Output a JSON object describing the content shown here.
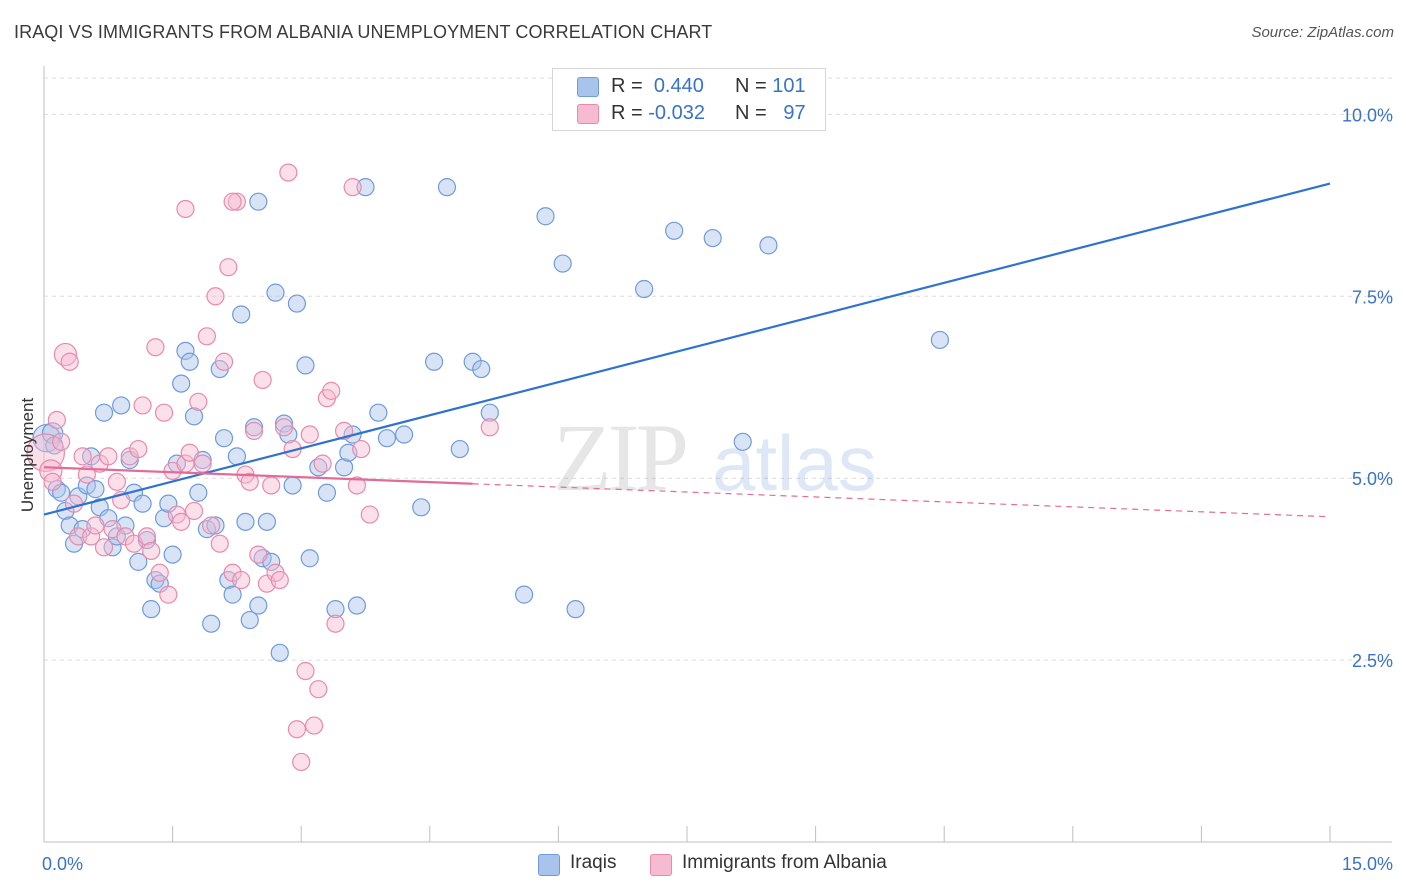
{
  "title": "IRAQI VS IMMIGRANTS FROM ALBANIA UNEMPLOYMENT CORRELATION CHART",
  "source": "Source: ZipAtlas.com",
  "watermark": {
    "zip": "ZIP",
    "atlas": "atlas"
  },
  "legend": {
    "r_label": "R =",
    "n_label": "N =",
    "rows": [
      {
        "r": "0.440",
        "n": "101",
        "color": "#a9c4ec",
        "border": "#6f9bdb"
      },
      {
        "r": "-0.032",
        "n": "97",
        "color": "#f6bbd0",
        "border": "#e88aab"
      }
    ]
  },
  "colors": {
    "iraqis_fill": "#a9c4ec",
    "iraqis_stroke": "#6f9bdb",
    "iraqis_line": "#2f73cf",
    "albania_fill": "#f6bbd0",
    "albania_stroke": "#e88aab",
    "albania_line": "#e36b97",
    "tick_label": "#3a72c8",
    "grid": "#dcdcdc"
  },
  "chart_data": {
    "type": "scatter",
    "title": "IRAQI VS IMMIGRANTS FROM ALBANIA UNEMPLOYMENT CORRELATION CHART",
    "xlabel": "",
    "ylabel": "Unemployment",
    "xlim": [
      0,
      15
    ],
    "ylim": [
      0,
      10.5
    ],
    "x_tick_labels": [
      "0.0%",
      "15.0%"
    ],
    "y_ticks": [
      2.5,
      5.0,
      7.5,
      10.0
    ],
    "y_tick_labels": [
      "2.5%",
      "5.0%",
      "7.5%",
      "10.0%"
    ],
    "grid": true,
    "legend_position": "top-center",
    "series": [
      {
        "name": "Iraqis",
        "r": 0.44,
        "n": 101,
        "trend": {
          "x": [
            0,
            15
          ],
          "y": [
            4.5,
            9.05
          ],
          "dashed_from": null
        },
        "points": [
          [
            0.03,
            5.55,
            1.6
          ],
          [
            0.1,
            5.62,
            1.2
          ],
          [
            0.12,
            5.45,
            1
          ],
          [
            0.15,
            4.85,
            1
          ],
          [
            0.2,
            4.8,
            1
          ],
          [
            0.25,
            4.55,
            1
          ],
          [
            0.3,
            4.35,
            1
          ],
          [
            0.35,
            4.1,
            1
          ],
          [
            0.4,
            4.75,
            1
          ],
          [
            0.45,
            4.3,
            1
          ],
          [
            0.5,
            4.9,
            1
          ],
          [
            0.55,
            5.3,
            1
          ],
          [
            0.6,
            4.85,
            1
          ],
          [
            0.65,
            4.6,
            1
          ],
          [
            0.7,
            5.9,
            1
          ],
          [
            0.75,
            4.45,
            1
          ],
          [
            0.8,
            4.05,
            1
          ],
          [
            0.85,
            4.2,
            1
          ],
          [
            0.9,
            6.0,
            1
          ],
          [
            0.95,
            4.35,
            1
          ],
          [
            1.0,
            5.25,
            1
          ],
          [
            1.05,
            4.8,
            1
          ],
          [
            1.1,
            3.85,
            1
          ],
          [
            1.15,
            4.65,
            1
          ],
          [
            1.2,
            4.15,
            1
          ],
          [
            1.25,
            3.2,
            1
          ],
          [
            1.3,
            3.6,
            1
          ],
          [
            1.35,
            3.55,
            1
          ],
          [
            1.4,
            4.45,
            1
          ],
          [
            1.45,
            4.65,
            1
          ],
          [
            1.5,
            3.95,
            1
          ],
          [
            1.55,
            5.2,
            1
          ],
          [
            1.6,
            6.3,
            1
          ],
          [
            1.65,
            6.75,
            1
          ],
          [
            1.7,
            6.6,
            1
          ],
          [
            1.75,
            5.85,
            1
          ],
          [
            1.8,
            4.8,
            1
          ],
          [
            1.85,
            5.25,
            1
          ],
          [
            1.9,
            4.3,
            1
          ],
          [
            1.95,
            3.0,
            1
          ],
          [
            2.0,
            4.35,
            1
          ],
          [
            2.05,
            6.5,
            1
          ],
          [
            2.1,
            5.55,
            1
          ],
          [
            2.15,
            3.6,
            1
          ],
          [
            2.2,
            3.4,
            1
          ],
          [
            2.25,
            5.3,
            1
          ],
          [
            2.3,
            7.25,
            1
          ],
          [
            2.35,
            4.4,
            1
          ],
          [
            2.4,
            3.05,
            1
          ],
          [
            2.45,
            5.7,
            1
          ],
          [
            2.5,
            3.25,
            1
          ],
          [
            2.55,
            3.9,
            1
          ],
          [
            2.6,
            4.4,
            1
          ],
          [
            2.65,
            3.85,
            1
          ],
          [
            2.7,
            7.55,
            1
          ],
          [
            2.75,
            2.6,
            1
          ],
          [
            2.8,
            5.75,
            1
          ],
          [
            2.85,
            5.6,
            1
          ],
          [
            2.9,
            4.9,
            1
          ],
          [
            2.95,
            7.4,
            1
          ],
          [
            2.5,
            8.8,
            1
          ],
          [
            3.05,
            6.55,
            1
          ],
          [
            3.1,
            3.9,
            1
          ],
          [
            3.2,
            5.15,
            1
          ],
          [
            3.3,
            4.8,
            1
          ],
          [
            3.4,
            3.2,
            1
          ],
          [
            3.5,
            5.15,
            1
          ],
          [
            3.55,
            5.35,
            1
          ],
          [
            3.6,
            5.6,
            1
          ],
          [
            3.65,
            3.25,
            1
          ],
          [
            3.75,
            9.0,
            1
          ],
          [
            3.9,
            5.9,
            1
          ],
          [
            4.0,
            5.55,
            1
          ],
          [
            4.2,
            5.6,
            1
          ],
          [
            4.4,
            4.6,
            1
          ],
          [
            4.55,
            6.6,
            1
          ],
          [
            4.7,
            9.0,
            1
          ],
          [
            4.85,
            5.4,
            1
          ],
          [
            5.0,
            6.6,
            1
          ],
          [
            5.1,
            6.5,
            1
          ],
          [
            5.2,
            5.9,
            1
          ],
          [
            5.6,
            3.4,
            1
          ],
          [
            5.85,
            8.6,
            1
          ],
          [
            6.05,
            7.95,
            1
          ],
          [
            6.2,
            3.2,
            1
          ],
          [
            7.0,
            7.6,
            1
          ],
          [
            7.35,
            8.4,
            1
          ],
          [
            7.8,
            8.3,
            1
          ],
          [
            8.15,
            5.5,
            1
          ],
          [
            8.45,
            8.2,
            1
          ],
          [
            10.45,
            6.9,
            1
          ]
        ]
      },
      {
        "name": "Immigrants from Albania",
        "r": -0.032,
        "n": 97,
        "trend": {
          "x": [
            0,
            15
          ],
          "y": [
            5.15,
            4.47
          ],
          "dashed_from": 5.0
        },
        "points": [
          [
            0.02,
            5.35,
            2.2
          ],
          [
            0.08,
            5.1,
            1.3
          ],
          [
            0.1,
            4.95,
            1
          ],
          [
            0.15,
            5.8,
            1
          ],
          [
            0.2,
            5.5,
            1
          ],
          [
            0.25,
            6.7,
            1.3
          ],
          [
            0.3,
            6.6,
            1
          ],
          [
            0.35,
            4.65,
            1
          ],
          [
            0.4,
            4.2,
            1
          ],
          [
            0.45,
            5.3,
            1
          ],
          [
            0.5,
            5.05,
            1
          ],
          [
            0.55,
            4.2,
            1
          ],
          [
            0.6,
            4.35,
            1
          ],
          [
            0.65,
            5.2,
            1
          ],
          [
            0.7,
            4.05,
            1
          ],
          [
            0.75,
            5.3,
            1
          ],
          [
            0.8,
            4.3,
            1
          ],
          [
            0.85,
            4.95,
            1
          ],
          [
            0.9,
            4.7,
            1
          ],
          [
            0.95,
            4.2,
            1
          ],
          [
            1.0,
            5.3,
            1
          ],
          [
            1.05,
            4.1,
            1
          ],
          [
            1.1,
            5.4,
            1
          ],
          [
            1.15,
            6.0,
            1
          ],
          [
            1.2,
            4.2,
            1
          ],
          [
            1.25,
            4.0,
            1
          ],
          [
            1.3,
            6.8,
            1
          ],
          [
            1.35,
            3.7,
            1
          ],
          [
            1.4,
            5.9,
            1
          ],
          [
            1.45,
            3.4,
            1
          ],
          [
            1.5,
            5.1,
            1
          ],
          [
            1.55,
            4.5,
            1
          ],
          [
            1.6,
            4.4,
            1
          ],
          [
            1.65,
            5.2,
            1
          ],
          [
            1.7,
            5.35,
            1
          ],
          [
            1.75,
            4.55,
            1
          ],
          [
            1.8,
            6.05,
            1
          ],
          [
            1.85,
            5.2,
            1
          ],
          [
            1.9,
            6.95,
            1
          ],
          [
            1.95,
            4.35,
            1
          ],
          [
            2.0,
            7.5,
            1
          ],
          [
            2.05,
            4.1,
            1
          ],
          [
            2.1,
            6.6,
            1
          ],
          [
            2.15,
            7.9,
            1
          ],
          [
            2.2,
            3.7,
            1
          ],
          [
            2.25,
            8.8,
            1
          ],
          [
            2.3,
            3.6,
            1
          ],
          [
            2.35,
            5.05,
            1
          ],
          [
            2.4,
            4.95,
            1
          ],
          [
            2.45,
            5.65,
            1
          ],
          [
            2.5,
            3.95,
            1
          ],
          [
            2.55,
            6.35,
            1
          ],
          [
            2.6,
            3.55,
            1
          ],
          [
            2.65,
            4.9,
            1
          ],
          [
            2.7,
            3.7,
            1
          ],
          [
            2.75,
            3.6,
            1
          ],
          [
            2.8,
            5.7,
            1
          ],
          [
            2.85,
            9.2,
            1
          ],
          [
            2.9,
            5.4,
            1
          ],
          [
            2.95,
            1.55,
            1
          ],
          [
            3.0,
            1.1,
            1
          ],
          [
            3.05,
            2.35,
            1
          ],
          [
            3.1,
            5.6,
            1
          ],
          [
            3.15,
            1.6,
            1
          ],
          [
            3.2,
            2.1,
            1
          ],
          [
            3.25,
            5.2,
            1
          ],
          [
            3.3,
            6.1,
            1
          ],
          [
            3.35,
            6.2,
            1
          ],
          [
            3.4,
            3.0,
            1
          ],
          [
            3.5,
            5.65,
            1
          ],
          [
            3.6,
            9.0,
            1
          ],
          [
            3.65,
            4.9,
            1
          ],
          [
            3.7,
            5.4,
            1
          ],
          [
            3.8,
            4.5,
            1
          ],
          [
            1.65,
            8.7,
            1
          ],
          [
            2.2,
            8.8,
            1
          ],
          [
            5.2,
            5.7,
            1
          ]
        ]
      }
    ]
  },
  "bottom_legend": [
    {
      "label": "Iraqis"
    },
    {
      "label": "Immigrants from Albania"
    }
  ]
}
